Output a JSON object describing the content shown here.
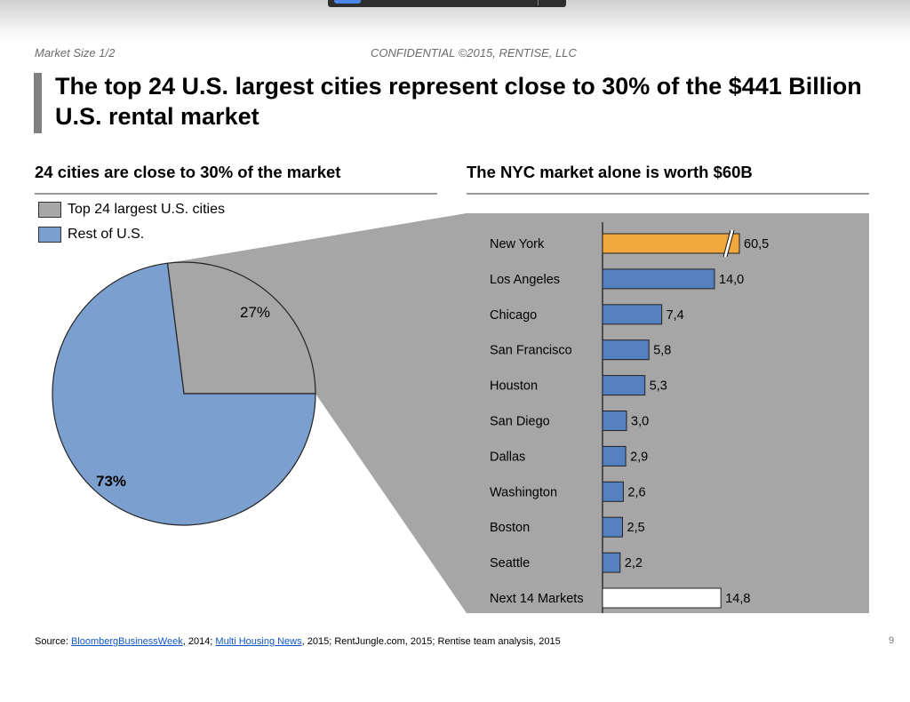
{
  "header": {
    "section": "Market Size 1/2",
    "confidential": "CONFIDENTIAL ©2015, RENTISE, LLC",
    "title": "The top 24 U.S. largest cities represent close to 30% of the $441 Billion U.S. rental market"
  },
  "left_panel": {
    "subtitle": "24 cities are close to 30% of the market",
    "legend": [
      {
        "label": "Top 24 largest U.S. cities",
        "color": "#a6a6a6"
      },
      {
        "label": "Rest of U.S.",
        "color": "#7ba0cf"
      }
    ]
  },
  "right_panel": {
    "subtitle": "The NYC market alone is worth $60B"
  },
  "colors": {
    "pie_top24": "#a6a6a6",
    "pie_rest": "#7ba0cf",
    "bar_blue": "#5580bf",
    "bar_highlight": "#f0a73c",
    "bar_other": "#ffffff",
    "panel_bg": "#a6a6a6"
  },
  "chart_data": [
    {
      "type": "pie",
      "labels": [
        "Top 24 largest U.S. cities",
        "Rest of U.S."
      ],
      "values": [
        27,
        73
      ],
      "value_labels": [
        "27%",
        "73%"
      ]
    },
    {
      "type": "bar",
      "orientation": "horizontal",
      "categories": [
        "New York",
        "Los Angeles",
        "Chicago",
        "San Francisco",
        "Houston",
        "San Diego",
        "Dallas",
        "Washington",
        "Boston",
        "Seattle",
        "Next 14 Markets"
      ],
      "values": [
        60.5,
        14.0,
        7.4,
        5.8,
        5.3,
        3.0,
        2.9,
        2.6,
        2.5,
        2.2,
        14.8
      ],
      "value_labels": [
        "60,5",
        "14,0",
        "7,4",
        "5,8",
        "5,3",
        "3,0",
        "2,9",
        "2,6",
        "2,5",
        "2,2",
        "14,8"
      ],
      "highlight": "New York",
      "axis_break": "New York"
    }
  ],
  "footer": {
    "prefix": "Source: ",
    "link1": "BloombergBusinessWeek",
    "mid1": ", 2014; ",
    "link2": "Multi Housing News",
    "rest": ", 2015; RentJungle.com, 2015; Rentise team analysis, 2015",
    "page": "9"
  }
}
